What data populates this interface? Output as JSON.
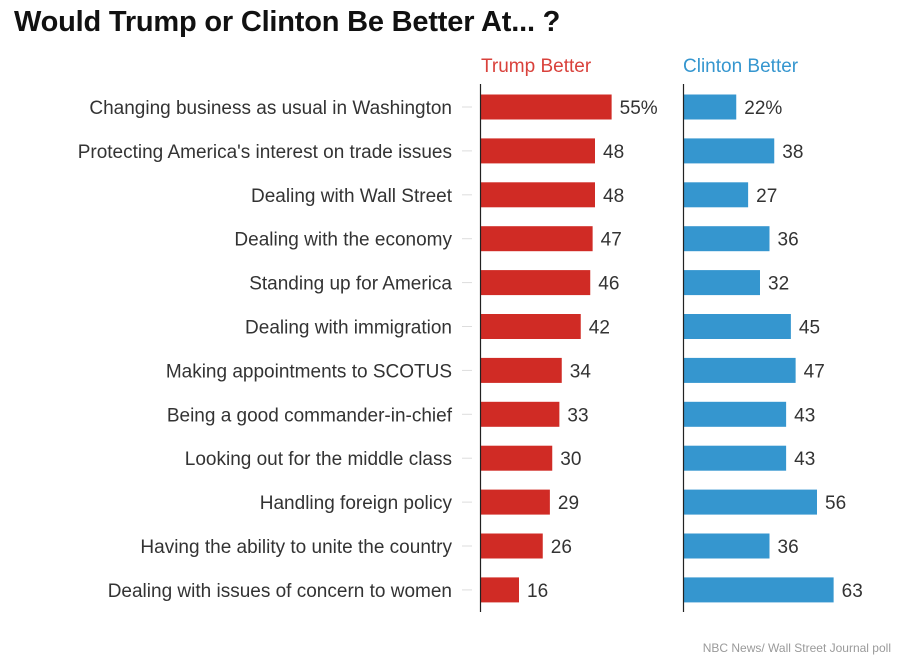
{
  "title": "Would Trump or Clinton Be Better At... ?",
  "source": "NBC News/ Wall Street Journal poll",
  "chart_data": {
    "type": "bar",
    "orientation": "horizontal",
    "title": "Would Trump or Clinton Be Better At... ?",
    "xlabel": "",
    "ylabel": "",
    "unit": "%",
    "categories": [
      "Changing business as usual in Washington",
      "Protecting America's interest on trade issues",
      "Dealing with Wall Street",
      "Dealing with the economy",
      "Standing up for America",
      "Dealing with immigration",
      "Making appointments to SCOTUS",
      "Being a good commander-in-chief",
      "Looking out for the middle class",
      "Handling foreign policy",
      "Having the ability to unite the country",
      "Dealing with issues of concern to women"
    ],
    "series": [
      {
        "name": "Trump Better",
        "color": "#d02b25",
        "label_color": "#d9413b",
        "values": [
          55,
          48,
          48,
          47,
          46,
          42,
          34,
          33,
          30,
          29,
          26,
          16
        ],
        "labels": [
          "55%",
          "48",
          "48",
          "47",
          "46",
          "42",
          "34",
          "33",
          "30",
          "29",
          "26",
          "16"
        ]
      },
      {
        "name": "Clinton Better",
        "color": "#3596cf",
        "label_color": "#3596cf",
        "values": [
          22,
          38,
          27,
          36,
          32,
          45,
          47,
          43,
          43,
          56,
          36,
          63
        ],
        "labels": [
          "22%",
          "38",
          "27",
          "36",
          "32",
          "45",
          "47",
          "43",
          "43",
          "56",
          "36",
          "63"
        ]
      }
    ],
    "grid": false,
    "legend": "top"
  }
}
